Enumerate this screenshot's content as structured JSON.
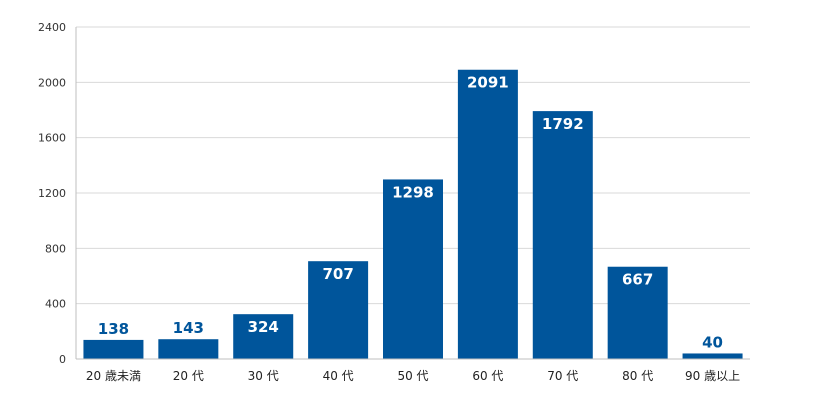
{
  "chart_data": {
    "type": "bar",
    "categories": [
      "20 歳未満",
      "20 代",
      "30 代",
      "40 代",
      "50 代",
      "60 代",
      "70 代",
      "80 代",
      "90 歳以上"
    ],
    "values": [
      138,
      143,
      324,
      707,
      1298,
      2091,
      1792,
      667,
      40
    ],
    "ylim": [
      0,
      2400
    ],
    "yticks": [
      0,
      400,
      800,
      1200,
      1600,
      2000,
      2400
    ],
    "grid": true,
    "legend": "none",
    "bar_color": "#00559b",
    "label_color_inside": "#ffffff",
    "label_color_outside": "#00559b"
  }
}
